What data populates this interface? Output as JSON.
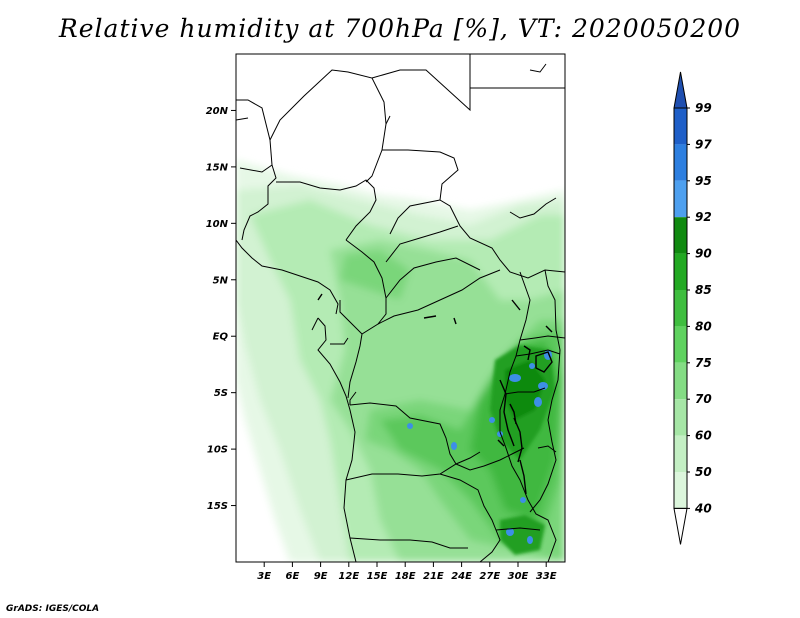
{
  "title": "Relative humidity at 700hPa [%], VT: 2020050200",
  "credit": "GrADS: IGES/COLA",
  "map": {
    "lat_range": [
      -20,
      25
    ],
    "lon_range": [
      0,
      35
    ],
    "lat_labels": [
      "20N",
      "15N",
      "10N",
      "5N",
      "EQ",
      "5S",
      "10S",
      "15S"
    ],
    "lat_values": [
      20,
      15,
      10,
      5,
      0,
      -5,
      -10,
      -15
    ],
    "lon_labels": [
      "3E",
      "6E",
      "9E",
      "12E",
      "15E",
      "18E",
      "21E",
      "24E",
      "27E",
      "30E",
      "33E"
    ],
    "lon_values": [
      3,
      6,
      9,
      12,
      15,
      18,
      21,
      24,
      27,
      30,
      33
    ]
  },
  "colorbar": {
    "labels": [
      "99",
      "97",
      "95",
      "92",
      "90",
      "85",
      "80",
      "75",
      "70",
      "60",
      "50",
      "40"
    ],
    "colors": [
      "#1e5fc8",
      "#2d7fe0",
      "#4ea0ef",
      "#108a10",
      "#22a922",
      "#3fbe3f",
      "#5fd25f",
      "#84dc84",
      "#a6e6a6",
      "#c4efc4",
      "#dcf6dc",
      "#f0fbf0"
    ],
    "top_color": "#1f4fb0",
    "bottom_color": "#ffffff"
  }
}
